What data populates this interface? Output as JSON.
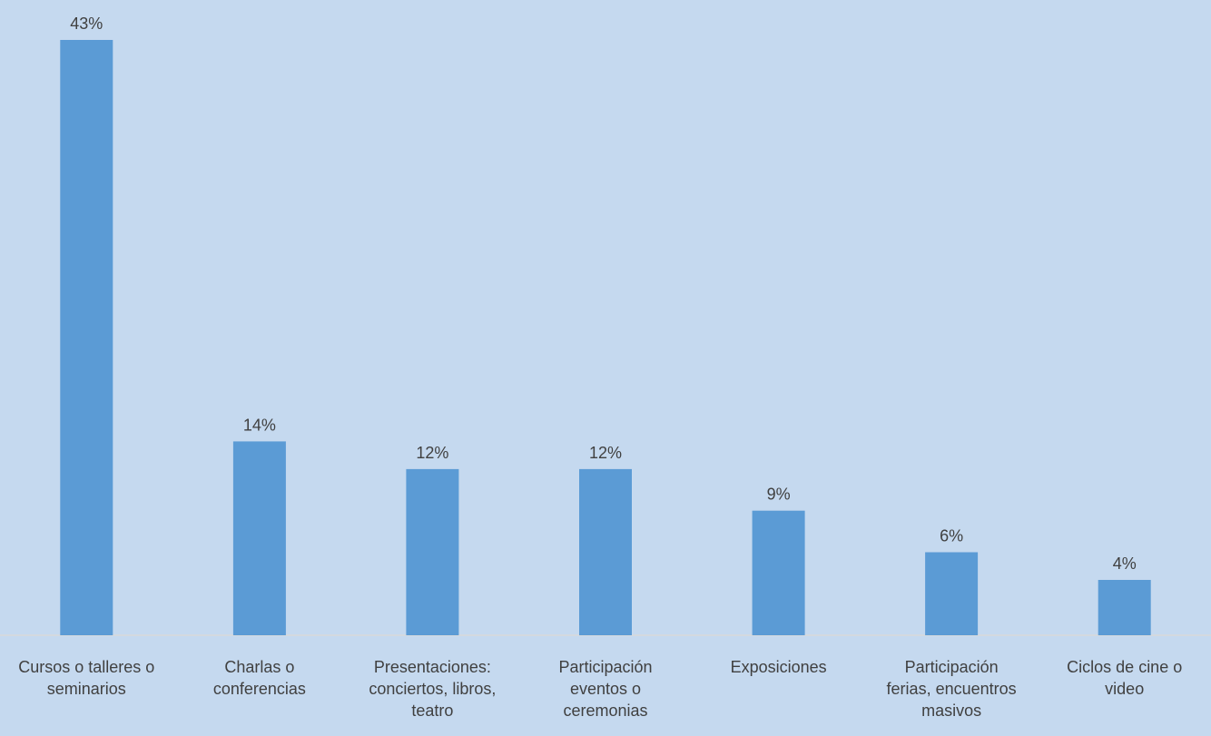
{
  "chart_data": {
    "type": "bar",
    "title": "",
    "xlabel": "",
    "ylabel": "",
    "categories": [
      [
        "Cursos o talleres o",
        "seminarios"
      ],
      [
        "Charlas o",
        "conferencias"
      ],
      [
        "Presentaciones:",
        "conciertos, libros,",
        "teatro"
      ],
      [
        "Participación",
        "eventos o",
        "ceremonias"
      ],
      [
        "Exposiciones"
      ],
      [
        "Participación",
        "ferias, encuentros",
        "masivos"
      ],
      [
        "Ciclos de cine o",
        "video"
      ]
    ],
    "values": [
      43,
      14,
      12,
      12,
      9,
      6,
      4
    ],
    "value_labels": [
      "43%",
      "14%",
      "12%",
      "12%",
      "9%",
      "6%",
      "4%"
    ],
    "ylim": [
      0,
      43
    ],
    "grid": false,
    "legend": "none",
    "colors": {
      "background": "#c5d9ef",
      "bar": "#5b9bd5",
      "axis": "#d9d9d9",
      "text": "#404040"
    }
  }
}
